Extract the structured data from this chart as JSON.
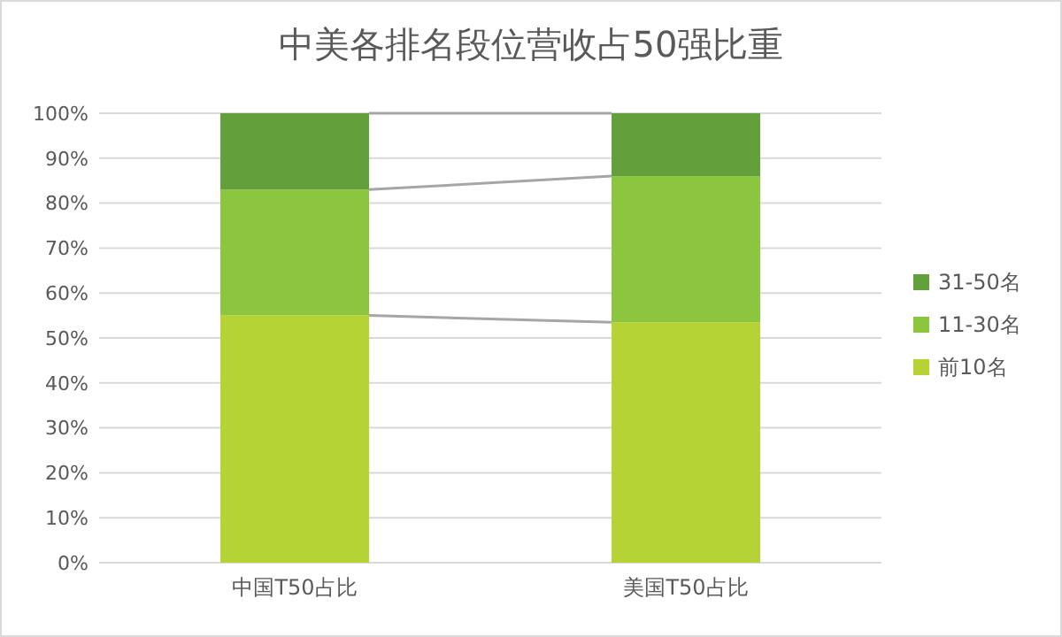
{
  "chart_data": {
    "type": "bar",
    "title": "中美各排名段位营收占50强比重",
    "categories": [
      "中国T50占比",
      "美国T50占比"
    ],
    "stacked": true,
    "series": [
      {
        "name": "前10名",
        "color": "#b5d334",
        "values": [
          55,
          53.5
        ]
      },
      {
        "name": "11-30名",
        "color": "#8bc63e",
        "values": [
          28,
          32.5
        ]
      },
      {
        "name": "31-50名",
        "color": "#63a03c",
        "values": [
          17,
          14
        ]
      }
    ],
    "ylim": [
      0,
      100
    ],
    "yticks": [
      {
        "value": 0,
        "label": "0%"
      },
      {
        "value": 10,
        "label": "10%"
      },
      {
        "value": 20,
        "label": "20%"
      },
      {
        "value": 30,
        "label": "30%"
      },
      {
        "value": 40,
        "label": "40%"
      },
      {
        "value": 50,
        "label": "50%"
      },
      {
        "value": 60,
        "label": "60%"
      },
      {
        "value": 70,
        "label": "70%"
      },
      {
        "value": 80,
        "label": "80%"
      },
      {
        "value": 90,
        "label": "90%"
      },
      {
        "value": 100,
        "label": "100%"
      }
    ],
    "grid": "y",
    "legend": "right"
  }
}
